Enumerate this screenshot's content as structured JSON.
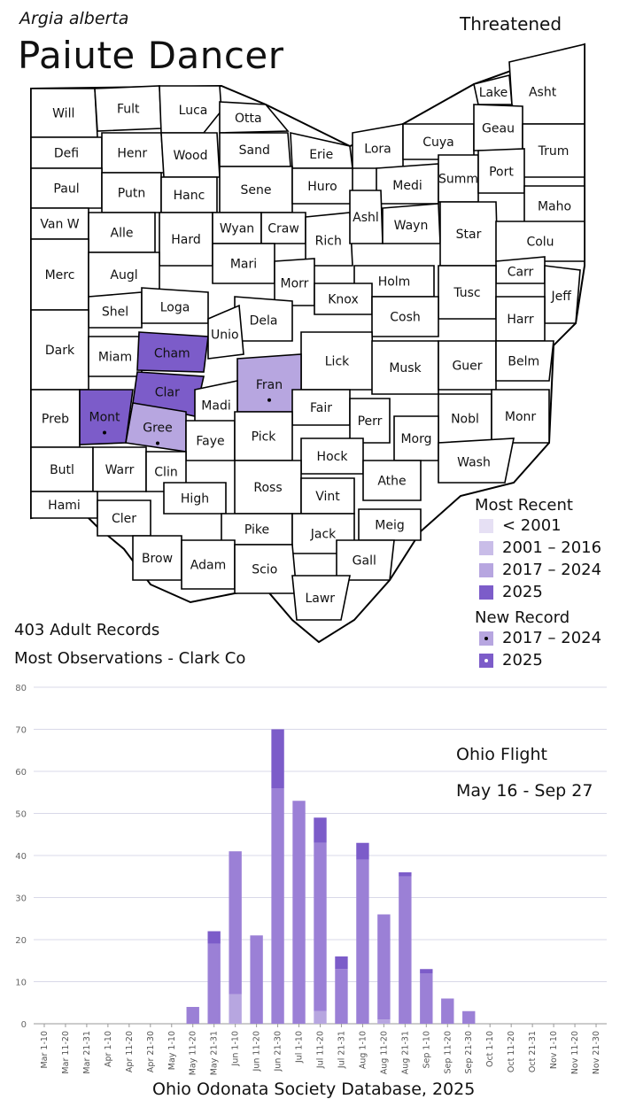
{
  "header": {
    "latin_name": "Argia alberta",
    "common_name": "Paiute Dancer",
    "status": "Threatened"
  },
  "colors": {
    "pre_2001": "#e6e0f4",
    "y2001_2016": "#c9bde8",
    "y2017_2024": "#b7a6e0",
    "y2025": "#7c5cc9",
    "bar_light": "#b7a6e0",
    "bar_mid": "#9b80d6",
    "bar_dark": "#7c5cc9",
    "grid": "#d8d8e8"
  },
  "map": {
    "counties": [
      {
        "name": "Will",
        "highlight": null
      },
      {
        "name": "Fult",
        "highlight": null
      },
      {
        "name": "Luca",
        "highlight": null
      },
      {
        "name": "Otta",
        "highlight": null
      },
      {
        "name": "Lake",
        "highlight": null
      },
      {
        "name": "Asht",
        "highlight": null
      },
      {
        "name": "Defi",
        "highlight": null
      },
      {
        "name": "Henr",
        "highlight": null
      },
      {
        "name": "Wood",
        "highlight": null
      },
      {
        "name": "Sand",
        "highlight": null
      },
      {
        "name": "Erie",
        "highlight": null
      },
      {
        "name": "Lora",
        "highlight": null
      },
      {
        "name": "Cuya",
        "highlight": null
      },
      {
        "name": "Geau",
        "highlight": null
      },
      {
        "name": "Trum",
        "highlight": null
      },
      {
        "name": "Paul",
        "highlight": null
      },
      {
        "name": "Putn",
        "highlight": null
      },
      {
        "name": "Hanc",
        "highlight": null
      },
      {
        "name": "Sene",
        "highlight": null
      },
      {
        "name": "Huro",
        "highlight": null
      },
      {
        "name": "Medi",
        "highlight": null
      },
      {
        "name": "Summ",
        "highlight": null
      },
      {
        "name": "Port",
        "highlight": null
      },
      {
        "name": "Maho",
        "highlight": null
      },
      {
        "name": "Van W",
        "highlight": null
      },
      {
        "name": "Alle",
        "highlight": null
      },
      {
        "name": "Hard",
        "highlight": null
      },
      {
        "name": "Wyan",
        "highlight": null
      },
      {
        "name": "Craw",
        "highlight": null
      },
      {
        "name": "Rich",
        "highlight": null
      },
      {
        "name": "Ashl",
        "highlight": null
      },
      {
        "name": "Wayn",
        "highlight": null
      },
      {
        "name": "Star",
        "highlight": null
      },
      {
        "name": "Colu",
        "highlight": null
      },
      {
        "name": "Merc",
        "highlight": null
      },
      {
        "name": "Augl",
        "highlight": null
      },
      {
        "name": "Mari",
        "highlight": null
      },
      {
        "name": "Morr",
        "highlight": null
      },
      {
        "name": "Holm",
        "highlight": null
      },
      {
        "name": "Carr",
        "highlight": null
      },
      {
        "name": "Tusc",
        "highlight": null
      },
      {
        "name": "Jeff",
        "highlight": null
      },
      {
        "name": "Shel",
        "highlight": null
      },
      {
        "name": "Loga",
        "highlight": null
      },
      {
        "name": "Knox",
        "highlight": null
      },
      {
        "name": "Dela",
        "highlight": null
      },
      {
        "name": "Cosh",
        "highlight": null
      },
      {
        "name": "Harr",
        "highlight": null
      },
      {
        "name": "Dark",
        "highlight": null
      },
      {
        "name": "Miam",
        "highlight": null
      },
      {
        "name": "Cham",
        "highlight": "2025"
      },
      {
        "name": "Unio",
        "highlight": null
      },
      {
        "name": "Lick",
        "highlight": null
      },
      {
        "name": "Musk",
        "highlight": null
      },
      {
        "name": "Guer",
        "highlight": null
      },
      {
        "name": "Belm",
        "highlight": null
      },
      {
        "name": "Clar",
        "highlight": "2025"
      },
      {
        "name": "Fran",
        "highlight": "2017-2024"
      },
      {
        "name": "Preb",
        "highlight": null
      },
      {
        "name": "Mont",
        "highlight": "2025"
      },
      {
        "name": "Gree",
        "highlight": "2017-2024"
      },
      {
        "name": "Madi",
        "highlight": null
      },
      {
        "name": "Fair",
        "highlight": null
      },
      {
        "name": "Perr",
        "highlight": null
      },
      {
        "name": "Nobl",
        "highlight": null
      },
      {
        "name": "Monr",
        "highlight": null
      },
      {
        "name": "Faye",
        "highlight": null
      },
      {
        "name": "Pick",
        "highlight": null
      },
      {
        "name": "Morg",
        "highlight": null
      },
      {
        "name": "Butl",
        "highlight": null
      },
      {
        "name": "Warr",
        "highlight": null
      },
      {
        "name": "Clin",
        "highlight": null
      },
      {
        "name": "Hock",
        "highlight": null
      },
      {
        "name": "Wash",
        "highlight": null
      },
      {
        "name": "Ross",
        "highlight": null
      },
      {
        "name": "Athe",
        "highlight": null
      },
      {
        "name": "Hami",
        "highlight": null
      },
      {
        "name": "High",
        "highlight": null
      },
      {
        "name": "Vint",
        "highlight": null
      },
      {
        "name": "Cler",
        "highlight": null
      },
      {
        "name": "Pike",
        "highlight": null
      },
      {
        "name": "Jack",
        "highlight": null
      },
      {
        "name": "Meig",
        "highlight": null
      },
      {
        "name": "Brow",
        "highlight": null
      },
      {
        "name": "Adam",
        "highlight": null
      },
      {
        "name": "Scio",
        "highlight": null
      },
      {
        "name": "Gall",
        "highlight": null
      },
      {
        "name": "Lawr",
        "highlight": null
      }
    ],
    "new_records": [
      "Fran",
      "Mont",
      "Gree"
    ]
  },
  "legend": {
    "most_recent_title": "Most Recent",
    "most_recent_items": [
      {
        "label": "< 2001",
        "color": "#e6e0f4"
      },
      {
        "label": "2001 – 2016",
        "color": "#c9bde8"
      },
      {
        "label": "2017 – 2024",
        "color": "#b7a6e0"
      },
      {
        "label": "2025",
        "color": "#7c5cc9"
      }
    ],
    "new_record_title": "New Record",
    "new_record_items": [
      {
        "label": "2017 – 2024",
        "color": "#b7a6e0",
        "dot": "#000000"
      },
      {
        "label": "2025",
        "color": "#7c5cc9",
        "dot": "#ffffff"
      }
    ]
  },
  "stats": {
    "adult_records": "403 Adult Records",
    "most_observations": "Most Observations - Clark Co"
  },
  "flight": {
    "title": "Ohio Flight",
    "range": "May 16 - Sep 27"
  },
  "source": "Ohio Odonata Society Database, 2025",
  "chart_data": {
    "type": "bar",
    "stacked": true,
    "ylim": [
      0,
      80
    ],
    "yticks": [
      0,
      10,
      20,
      30,
      40,
      50,
      60,
      70,
      80
    ],
    "grid": true,
    "categories": [
      "Mar 1-10",
      "Mar 11-20",
      "Mar 21-31",
      "Apr 1-10",
      "Apr 11-20",
      "Apr 21-30",
      "May 1-10",
      "May 11-20",
      "May 21-31",
      "Jun 1-10",
      "Jun 11-20",
      "Jun 21-30",
      "Jul 1-10",
      "Jul 11-20",
      "Jul 21-31",
      "Aug 1-10",
      "Aug 11-20",
      "Aug 21-31",
      "Sep 1-10",
      "Sep 11-20",
      "Sep 21-30",
      "Oct 1-10",
      "Oct 11-20",
      "Oct 21-31",
      "Nov 1-10",
      "Nov 11-20",
      "Nov 21-30"
    ],
    "series": [
      {
        "values": [
          0,
          0,
          0,
          0,
          0,
          0,
          0,
          0,
          0,
          7,
          0,
          0,
          0,
          3,
          0,
          0,
          1,
          0,
          0,
          0,
          0,
          0,
          0,
          0,
          0,
          0,
          0
        ],
        "color": "#b7a6e0"
      },
      {
        "values": [
          0,
          0,
          0,
          0,
          0,
          0,
          0,
          4,
          19,
          34,
          21,
          56,
          53,
          40,
          13,
          39,
          25,
          35,
          12,
          6,
          3,
          0,
          0,
          0,
          0,
          0,
          0
        ],
        "color": "#9b80d6"
      },
      {
        "values": [
          0,
          0,
          0,
          0,
          0,
          0,
          0,
          0,
          3,
          0,
          0,
          14,
          0,
          6,
          3,
          4,
          0,
          1,
          1,
          0,
          0,
          0,
          0,
          0,
          0,
          0,
          0
        ],
        "color": "#7c5cc9"
      }
    ]
  }
}
